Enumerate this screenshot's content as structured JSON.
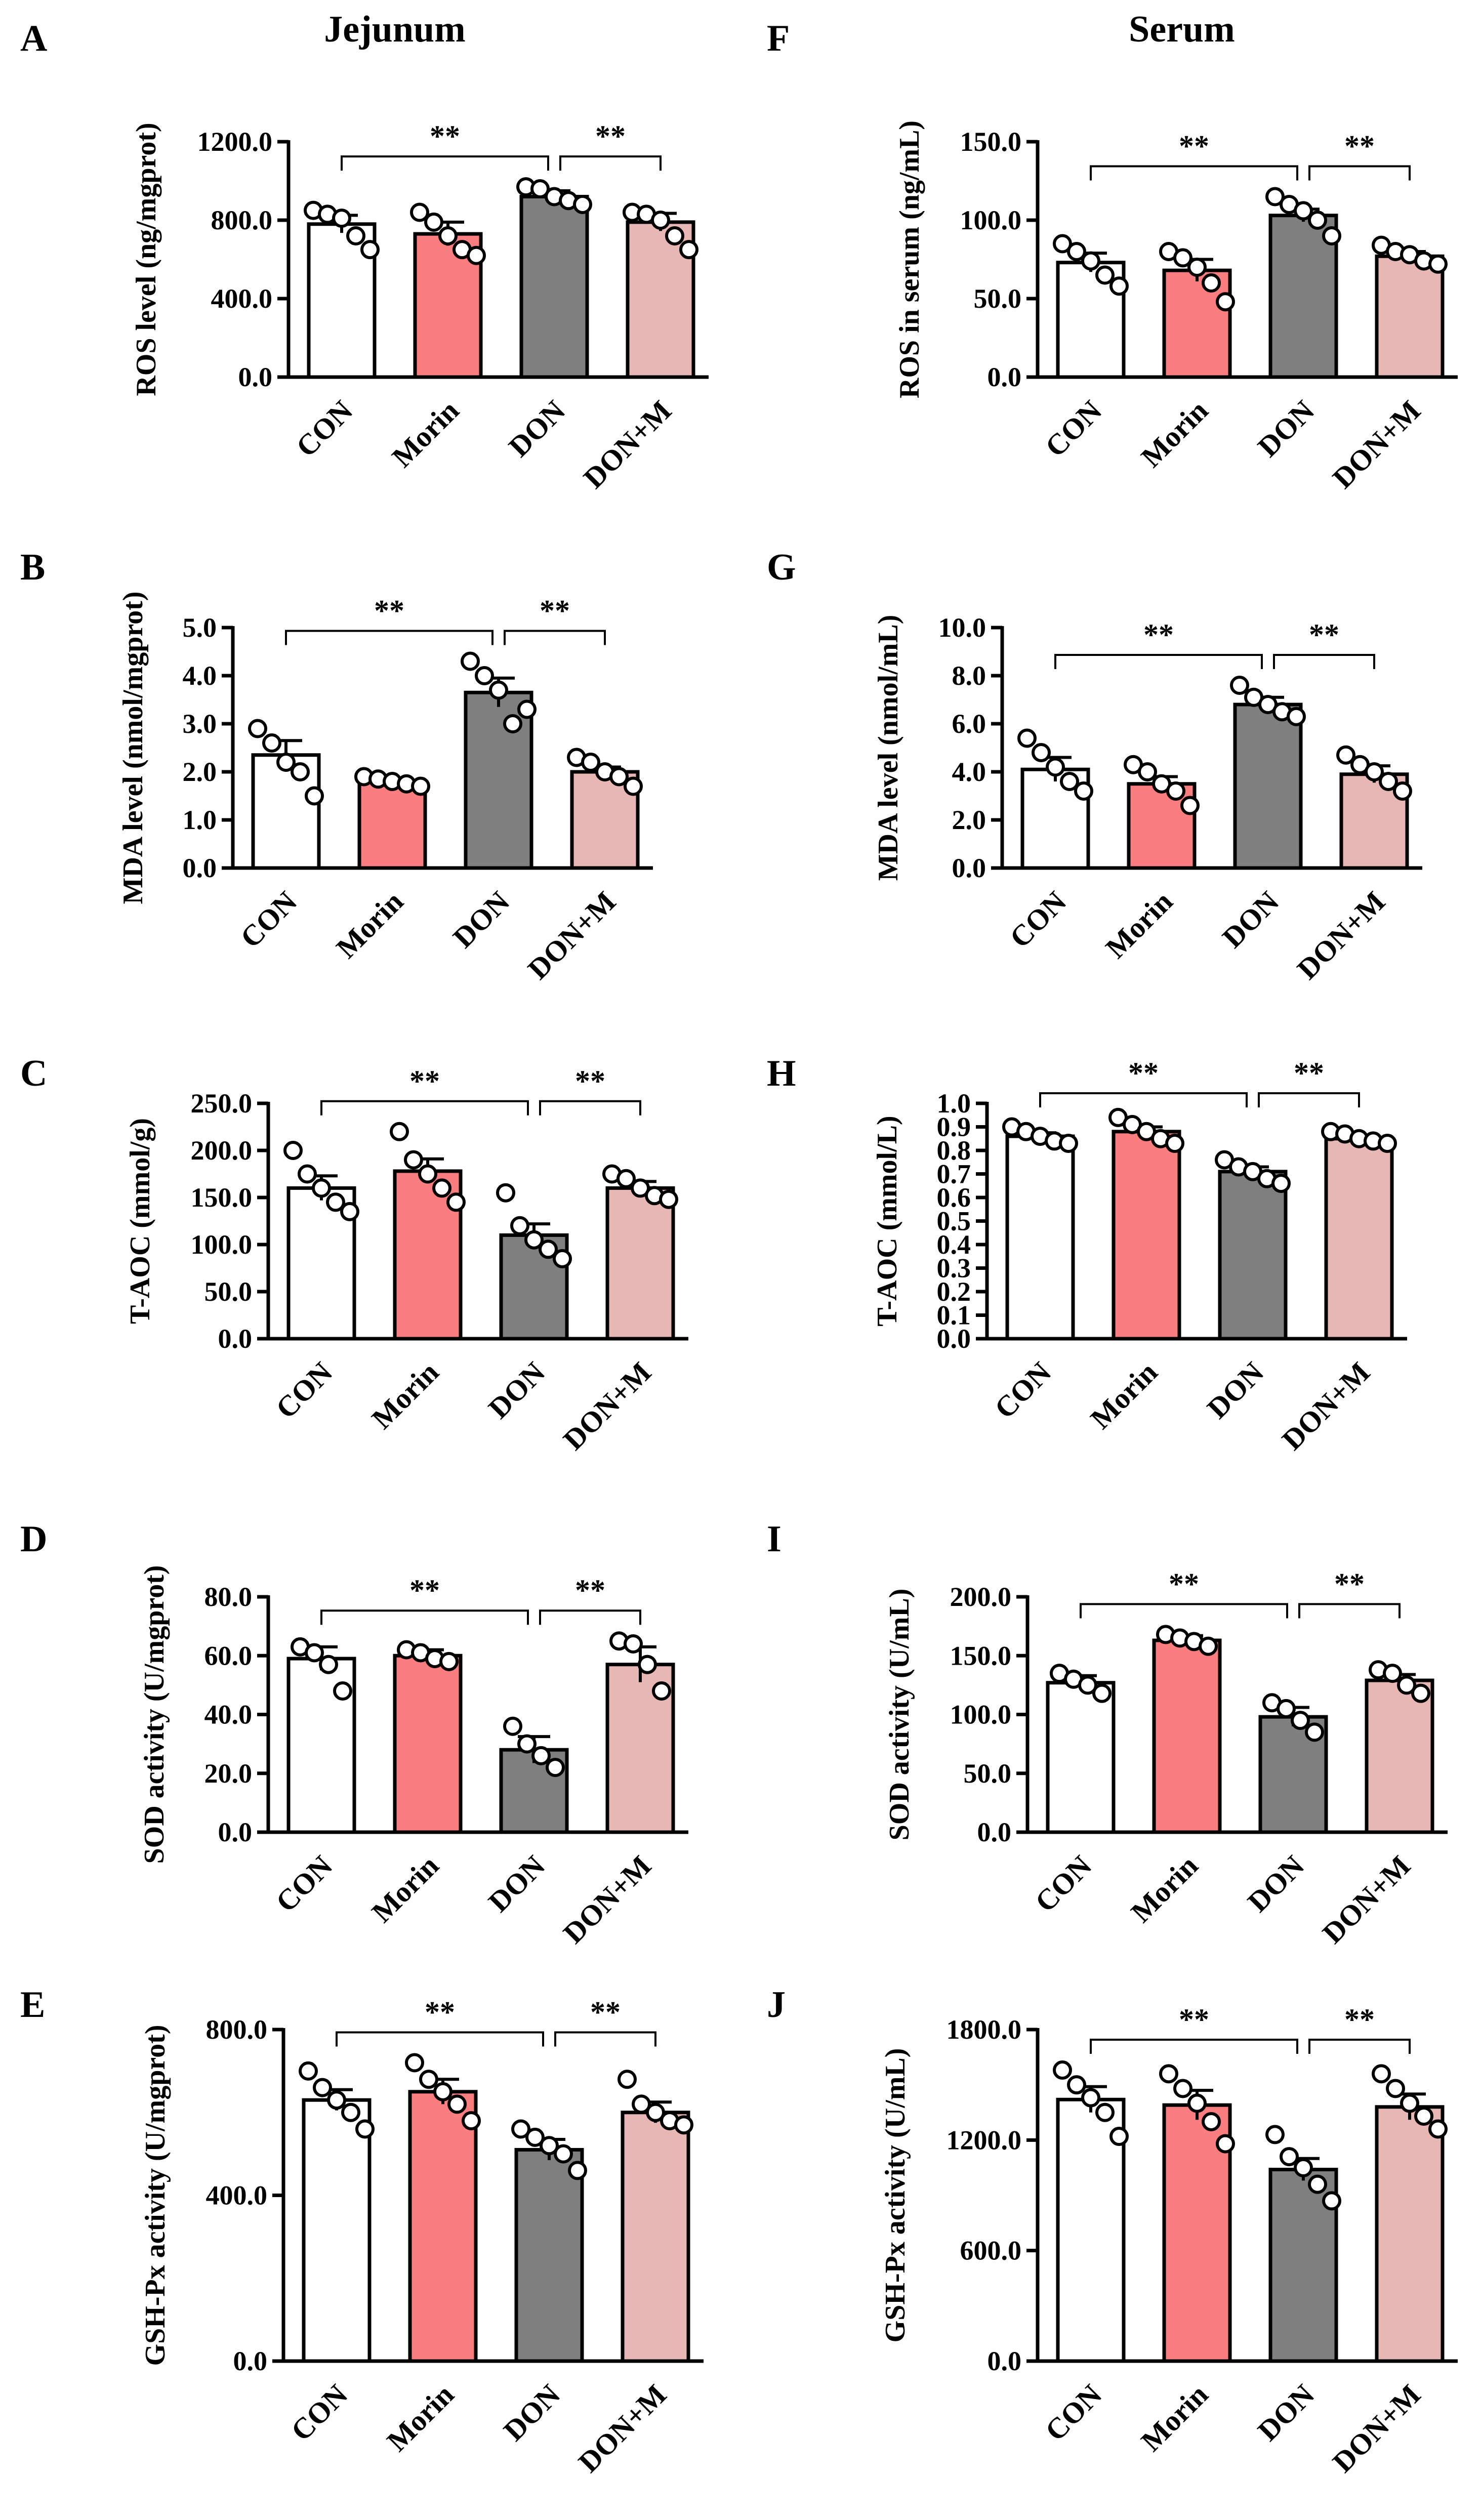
{
  "figure": {
    "column_titles": [
      "Jejunum",
      "Serum"
    ],
    "groups": [
      "CON",
      "Morin",
      "DON",
      "DON+M"
    ],
    "group_colors": [
      "#ffffff",
      "#fa7e80",
      "#7f7f7f",
      "#e6b7b5"
    ],
    "significance_label": "**"
  },
  "chart_data": [
    {
      "panel": "A",
      "type": "bar",
      "title": "",
      "categories": [
        "CON",
        "Morin",
        "DON",
        "DON+M"
      ],
      "ylabel": "ROS level (ng/mgprot)",
      "ylim": [
        0,
        1200
      ],
      "yticks": [
        0,
        400,
        800,
        1200
      ],
      "ytick_labels": [
        "0.0",
        "400.0",
        "800.0",
        "1200.0"
      ],
      "values": [
        780,
        730,
        920,
        790
      ],
      "errors": [
        45,
        60,
        30,
        45
      ],
      "points": [
        [
          850,
          830,
          810,
          720,
          650
        ],
        [
          840,
          790,
          720,
          650,
          620
        ],
        [
          970,
          960,
          920,
          900,
          880
        ],
        [
          840,
          830,
          800,
          720,
          650
        ]
      ],
      "significance": [
        {
          "from": "CON",
          "to": "DON",
          "label": "**"
        },
        {
          "from": "DON",
          "to": "DON+M",
          "label": "**"
        }
      ]
    },
    {
      "panel": "F",
      "type": "bar",
      "title": "",
      "categories": [
        "CON",
        "Morin",
        "DON",
        "DON+M"
      ],
      "ylabel": "ROS in serum (ng/mL)",
      "ylim": [
        0,
        150
      ],
      "yticks": [
        0,
        50,
        100,
        150
      ],
      "ytick_labels": [
        "0.0",
        "50.0",
        "100.0",
        "150.0"
      ],
      "values": [
        73,
        68,
        103,
        77
      ],
      "errors": [
        6,
        7,
        4,
        3
      ],
      "points": [
        [
          85,
          80,
          74,
          65,
          58
        ],
        [
          80,
          76,
          70,
          60,
          48
        ],
        [
          115,
          110,
          106,
          100,
          90
        ],
        [
          84,
          80,
          78,
          74,
          72
        ]
      ],
      "significance": [
        {
          "from": "CON",
          "to": "DON",
          "label": "**"
        },
        {
          "from": "DON",
          "to": "DON+M",
          "label": "**"
        }
      ]
    },
    {
      "panel": "B",
      "type": "bar",
      "title": "",
      "categories": [
        "CON",
        "Morin",
        "DON",
        "DON+M"
      ],
      "ylabel": "MDA level (nmol/mgprot)",
      "ylim": [
        0,
        5
      ],
      "yticks": [
        0,
        1,
        2,
        3,
        4,
        5
      ],
      "ytick_labels": [
        "0.0",
        "1.0",
        "2.0",
        "3.0",
        "4.0",
        "5.0"
      ],
      "values": [
        2.35,
        1.8,
        3.65,
        2.0
      ],
      "errors": [
        0.3,
        0.05,
        0.3,
        0.1
      ],
      "points": [
        [
          2.9,
          2.6,
          2.2,
          2.0,
          1.5
        ],
        [
          1.9,
          1.85,
          1.8,
          1.75,
          1.7
        ],
        [
          4.3,
          4.0,
          3.7,
          3.0,
          3.3
        ],
        [
          2.3,
          2.2,
          2.0,
          1.9,
          1.7
        ]
      ],
      "significance": [
        {
          "from": "CON",
          "to": "DON",
          "label": "**"
        },
        {
          "from": "DON",
          "to": "DON+M",
          "label": "**"
        }
      ]
    },
    {
      "panel": "G",
      "type": "bar",
      "title": "",
      "categories": [
        "CON",
        "Morin",
        "DON",
        "DON+M"
      ],
      "ylabel": "MDA level (nmol/mL)",
      "ylim": [
        0,
        10
      ],
      "yticks": [
        0,
        2,
        4,
        6,
        8,
        10
      ],
      "ytick_labels": [
        "0.0",
        "2.0",
        "4.0",
        "6.0",
        "8.0",
        "10.0"
      ],
      "values": [
        4.1,
        3.5,
        6.8,
        3.9
      ],
      "errors": [
        0.5,
        0.3,
        0.3,
        0.35
      ],
      "points": [
        [
          5.4,
          4.8,
          4.2,
          3.6,
          3.2
        ],
        [
          4.3,
          4.0,
          3.5,
          3.2,
          2.6
        ],
        [
          7.6,
          7.1,
          6.8,
          6.5,
          6.3
        ],
        [
          4.7,
          4.3,
          4.0,
          3.6,
          3.2
        ]
      ],
      "significance": [
        {
          "from": "CON",
          "to": "DON",
          "label": "**"
        },
        {
          "from": "DON",
          "to": "DON+M",
          "label": "**"
        }
      ]
    },
    {
      "panel": "C",
      "type": "bar",
      "title": "",
      "categories": [
        "CON",
        "Morin",
        "DON",
        "DON+M"
      ],
      "ylabel": "T-AOC (mmol/g)",
      "ylim": [
        0,
        250
      ],
      "yticks": [
        0,
        50,
        100,
        150,
        200,
        250
      ],
      "ytick_labels": [
        "0.0",
        "50.0",
        "100.0",
        "150.0",
        "200.0",
        "250.0"
      ],
      "values": [
        160,
        178,
        110,
        160
      ],
      "errors": [
        13,
        13,
        12,
        7
      ],
      "points": [
        [
          200,
          175,
          160,
          145,
          135
        ],
        [
          220,
          190,
          175,
          160,
          145
        ],
        [
          155,
          120,
          105,
          95,
          85
        ],
        [
          175,
          170,
          160,
          152,
          148
        ]
      ],
      "significance": [
        {
          "from": "CON",
          "to": "DON",
          "label": "**"
        },
        {
          "from": "DON",
          "to": "DON+M",
          "label": "**"
        }
      ]
    },
    {
      "panel": "H",
      "type": "bar",
      "title": "",
      "categories": [
        "CON",
        "Morin",
        "DON",
        "DON+M"
      ],
      "ylabel": "T-AOC (mmol/L)",
      "ylim": [
        0,
        1.0
      ],
      "yticks": [
        0,
        0.1,
        0.2,
        0.3,
        0.4,
        0.5,
        0.6,
        0.7,
        0.8,
        0.9,
        1.0
      ],
      "ytick_labels": [
        "0.0",
        "0.1",
        "0.2",
        "0.3",
        "0.4",
        "0.5",
        "0.6",
        "0.7",
        "0.8",
        "0.9",
        "1.0"
      ],
      "values": [
        0.86,
        0.88,
        0.71,
        0.85
      ],
      "errors": [
        0.015,
        0.02,
        0.02,
        0.01
      ],
      "points": [
        [
          0.9,
          0.88,
          0.86,
          0.84,
          0.83
        ],
        [
          0.94,
          0.91,
          0.88,
          0.85,
          0.83
        ],
        [
          0.76,
          0.73,
          0.71,
          0.68,
          0.66
        ],
        [
          0.88,
          0.87,
          0.85,
          0.84,
          0.83
        ]
      ],
      "significance": [
        {
          "from": "CON",
          "to": "DON",
          "label": "**"
        },
        {
          "from": "DON",
          "to": "DON+M",
          "label": "**"
        }
      ]
    },
    {
      "panel": "D",
      "type": "bar",
      "title": "",
      "categories": [
        "CON",
        "Morin",
        "DON",
        "DON+M"
      ],
      "ylabel": "SOD activity (U/mgprot)",
      "ylim": [
        0,
        80
      ],
      "yticks": [
        0,
        20,
        40,
        60,
        80
      ],
      "ytick_labels": [
        "0.0",
        "20.0",
        "40.0",
        "60.0",
        "80.0"
      ],
      "values": [
        59,
        60,
        28,
        57
      ],
      "errors": [
        4,
        2,
        4.5,
        6
      ],
      "points": [
        [
          63,
          61,
          57,
          48
        ],
        [
          62,
          61,
          59,
          58
        ],
        [
          36,
          30,
          26,
          22
        ],
        [
          65,
          64,
          57,
          48
        ]
      ],
      "significance": [
        {
          "from": "CON",
          "to": "DON",
          "label": "**"
        },
        {
          "from": "DON",
          "to": "DON+M",
          "label": "**"
        }
      ]
    },
    {
      "panel": "I",
      "type": "bar",
      "title": "",
      "categories": [
        "CON",
        "Morin",
        "DON",
        "DON+M"
      ],
      "ylabel": "SOD activity (U/mL)",
      "ylim": [
        0,
        200
      ],
      "yticks": [
        0,
        50,
        100,
        150,
        200
      ],
      "ytick_labels": [
        "0.0",
        "50.0",
        "100.0",
        "150.0",
        "200.0"
      ],
      "values": [
        127,
        163,
        98,
        129
      ],
      "errors": [
        6,
        4,
        8,
        5
      ],
      "points": [
        [
          135,
          130,
          125,
          118
        ],
        [
          168,
          165,
          162,
          158
        ],
        [
          110,
          105,
          95,
          85
        ],
        [
          138,
          135,
          125,
          118
        ]
      ],
      "significance": [
        {
          "from": "CON",
          "to": "DON",
          "label": "**"
        },
        {
          "from": "DON",
          "to": "DON+M",
          "label": "**"
        }
      ]
    },
    {
      "panel": "E",
      "type": "bar",
      "title": "",
      "categories": [
        "CON",
        "Morin",
        "DON",
        "DON+M"
      ],
      "ylabel": "GSH-Px activity (U/mgprot)",
      "ylim": [
        0,
        800
      ],
      "yticks": [
        0,
        400,
        800
      ],
      "ytick_labels": [
        "0.0",
        "400.0",
        "800.0"
      ],
      "values": [
        630,
        650,
        510,
        600
      ],
      "errors": [
        25,
        30,
        25,
        25
      ],
      "points": [
        [
          700,
          660,
          630,
          600,
          560
        ],
        [
          720,
          680,
          650,
          620,
          580
        ],
        [
          560,
          540,
          520,
          500,
          460
        ],
        [
          680,
          620,
          600,
          580,
          570
        ]
      ],
      "significance": [
        {
          "from": "CON",
          "to": "DON",
          "label": "**"
        },
        {
          "from": "DON",
          "to": "DON+M",
          "label": "**"
        }
      ]
    },
    {
      "panel": "J",
      "type": "bar",
      "title": "",
      "categories": [
        "CON",
        "Morin",
        "DON",
        "DON+M"
      ],
      "ylabel": "GSH-Px activity (U/mL)",
      "ylim": [
        0,
        1800
      ],
      "yticks": [
        0,
        600,
        1200,
        1800
      ],
      "ytick_labels": [
        "0.0",
        "600.0",
        "1200.0",
        "1800.0"
      ],
      "values": [
        1420,
        1390,
        1040,
        1380
      ],
      "errors": [
        70,
        80,
        60,
        70
      ],
      "points": [
        [
          1580,
          1500,
          1430,
          1350,
          1220
        ],
        [
          1560,
          1480,
          1400,
          1300,
          1180
        ],
        [
          1230,
          1110,
          1050,
          960,
          870
        ],
        [
          1560,
          1480,
          1400,
          1330,
          1260
        ]
      ],
      "significance": [
        {
          "from": "CON",
          "to": "DON",
          "label": "**"
        },
        {
          "from": "DON",
          "to": "DON+M",
          "label": "**"
        }
      ]
    }
  ]
}
